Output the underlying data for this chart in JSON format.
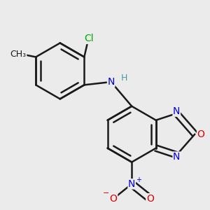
{
  "background_color": "#ebebeb",
  "bond_color": "#1a1a1a",
  "bond_width": 1.8,
  "atom_colors": {
    "C": "#1a1a1a",
    "N": "#0000e0",
    "O": "#dd0000",
    "Cl": "#00aa00",
    "H": "#4a9a9a"
  },
  "font_size": 10,
  "small_font_size": 8,
  "dbo": 0.018
}
